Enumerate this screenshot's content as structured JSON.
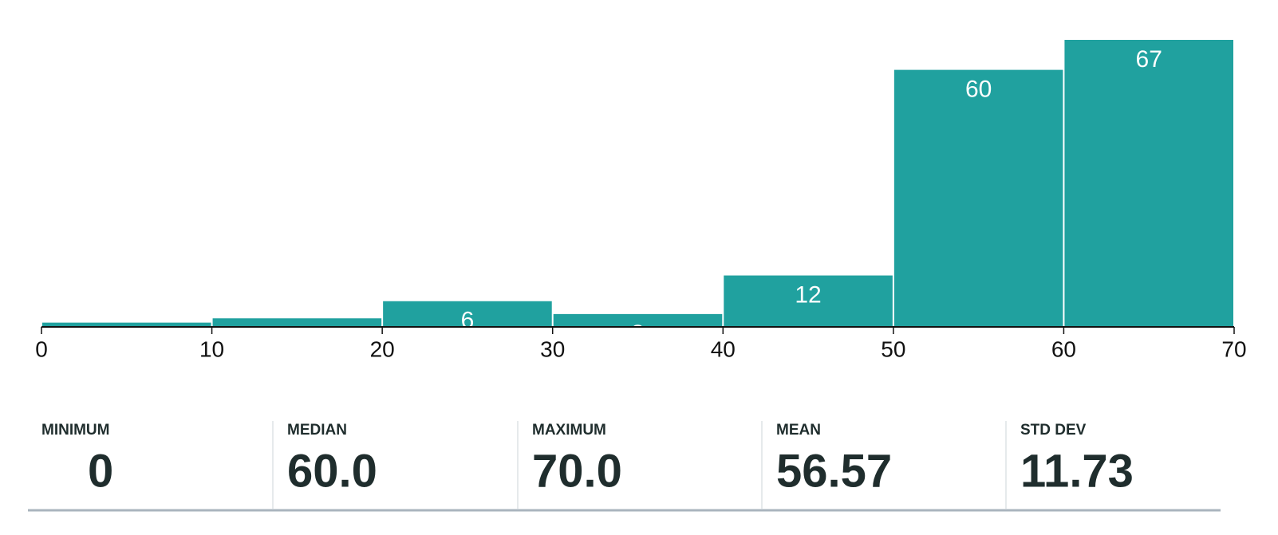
{
  "chart_data": {
    "type": "histogram",
    "bins": [
      0,
      10,
      20,
      30,
      40,
      50,
      60,
      70
    ],
    "values": [
      1,
      2,
      6,
      3,
      12,
      60,
      67
    ],
    "color": "#20a19f",
    "xlim": [
      0,
      70
    ],
    "xticks": [
      0,
      10,
      20,
      30,
      40,
      50,
      60,
      70
    ],
    "ylim": [
      0,
      67
    ]
  },
  "stats": [
    {
      "label": "MINIMUM",
      "value": "0"
    },
    {
      "label": "MEDIAN",
      "value": "60.0"
    },
    {
      "label": "MAXIMUM",
      "value": "70.0"
    },
    {
      "label": "MEAN",
      "value": "56.57"
    },
    {
      "label": "STD DEV",
      "value": "11.73"
    }
  ]
}
